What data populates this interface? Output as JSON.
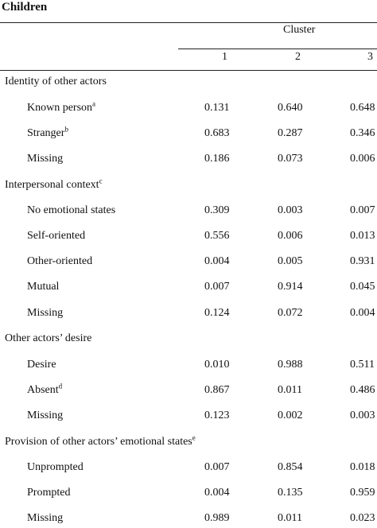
{
  "table": {
    "title": "Children",
    "cluster_header": "Cluster",
    "columns": [
      "1",
      "2",
      "3"
    ],
    "rows": [
      {
        "label": "Identity of other actors",
        "sup": "",
        "section": true,
        "values": []
      },
      {
        "label": "Known person",
        "sup": "a",
        "section": false,
        "values": [
          "0.131",
          "0.640",
          "0.648"
        ]
      },
      {
        "label": "Stranger",
        "sup": "b",
        "section": false,
        "values": [
          "0.683",
          "0.287",
          "0.346"
        ]
      },
      {
        "label": "Missing",
        "sup": "",
        "section": false,
        "values": [
          "0.186",
          "0.073",
          "0.006"
        ]
      },
      {
        "label": "Interpersonal context",
        "sup": "c",
        "section": true,
        "values": []
      },
      {
        "label": "No emotional states",
        "sup": "",
        "section": false,
        "values": [
          "0.309",
          "0.003",
          "0.007"
        ]
      },
      {
        "label": "Self-oriented",
        "sup": "",
        "section": false,
        "values": [
          "0.556",
          "0.006",
          "0.013"
        ]
      },
      {
        "label": "Other-oriented",
        "sup": "",
        "section": false,
        "values": [
          "0.004",
          "0.005",
          "0.931"
        ]
      },
      {
        "label": "Mutual",
        "sup": "",
        "section": false,
        "values": [
          "0.007",
          "0.914",
          "0.045"
        ]
      },
      {
        "label": "Missing",
        "sup": "",
        "section": false,
        "values": [
          "0.124",
          "0.072",
          "0.004"
        ]
      },
      {
        "label": "Other actors’ desire",
        "sup": "",
        "section": true,
        "values": []
      },
      {
        "label": "Desire",
        "sup": "",
        "section": false,
        "values": [
          "0.010",
          "0.988",
          "0.511"
        ]
      },
      {
        "label": "Absent",
        "sup": "d",
        "section": false,
        "values": [
          "0.867",
          "0.011",
          "0.486"
        ]
      },
      {
        "label": "Missing",
        "sup": "",
        "section": false,
        "values": [
          "0.123",
          "0.002",
          "0.003"
        ]
      },
      {
        "label": "Provision of other actors’ emotional states",
        "sup": "e",
        "section": true,
        "values": []
      },
      {
        "label": "Unprompted",
        "sup": "",
        "section": false,
        "values": [
          "0.007",
          "0.854",
          "0.018"
        ]
      },
      {
        "label": "Prompted",
        "sup": "",
        "section": false,
        "values": [
          "0.004",
          "0.135",
          "0.959"
        ]
      },
      {
        "label": "Missing",
        "sup": "",
        "section": false,
        "values": [
          "0.989",
          "0.011",
          "0.023"
        ]
      }
    ]
  }
}
